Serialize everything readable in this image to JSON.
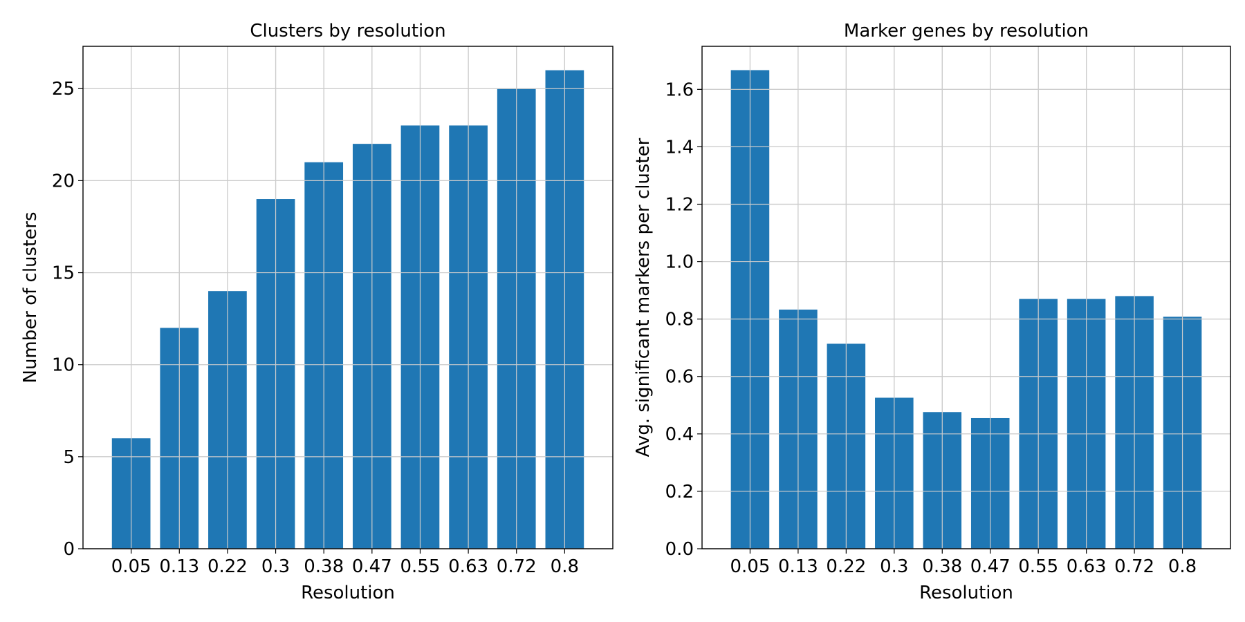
{
  "chart_data": [
    {
      "type": "bar",
      "title": "Clusters by resolution",
      "xlabel": "Resolution",
      "ylabel": "Number of clusters",
      "categories": [
        "0.05",
        "0.13",
        "0.22",
        "0.3",
        "0.38",
        "0.47",
        "0.55",
        "0.63",
        "0.72",
        "0.8"
      ],
      "values": [
        6,
        12,
        14,
        19,
        21,
        22,
        23,
        23,
        25,
        26
      ],
      "ylim": [
        0,
        27.3
      ],
      "yticks": [
        0,
        5,
        10,
        15,
        20,
        25
      ],
      "ytick_labels": [
        "0",
        "5",
        "10",
        "15",
        "20",
        "25"
      ],
      "grid": true,
      "bar_color": "#1f77b4"
    },
    {
      "type": "bar",
      "title": "Marker genes by resolution",
      "xlabel": "Resolution",
      "ylabel": "Avg. significant markers per cluster",
      "categories": [
        "0.05",
        "0.13",
        "0.22",
        "0.3",
        "0.38",
        "0.47",
        "0.55",
        "0.63",
        "0.72",
        "0.8"
      ],
      "values": [
        1.667,
        0.833,
        0.714,
        0.526,
        0.476,
        0.455,
        0.87,
        0.87,
        0.88,
        0.808
      ],
      "ylim": [
        0,
        1.75
      ],
      "yticks": [
        0,
        0.2,
        0.4,
        0.6,
        0.8,
        1.0,
        1.2,
        1.4,
        1.6
      ],
      "ytick_labels": [
        "0.0",
        "0.2",
        "0.4",
        "0.6",
        "0.8",
        "1.0",
        "1.2",
        "1.4",
        "1.6"
      ],
      "grid": true,
      "bar_color": "#1f77b4"
    }
  ]
}
